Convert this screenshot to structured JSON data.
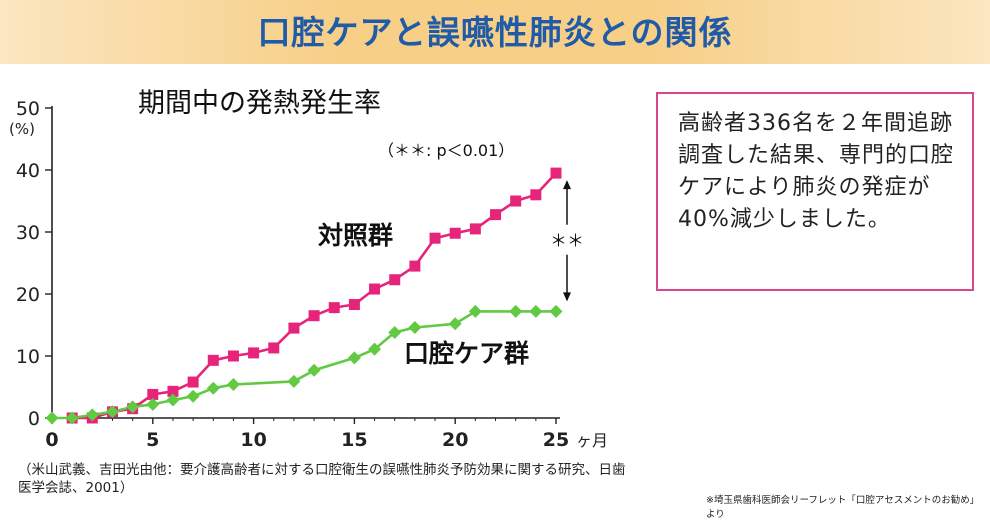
{
  "banner": {
    "title": "口腔ケアと誤嚥性肺炎との関係"
  },
  "info_box": {
    "text": "高齢者336名を２年間追跡調査した結果、専門的口腔ケアにより肺炎の発症が40%減少しました。"
  },
  "citation": "（米山武義、吉田光由他：要介護高齢者に対する口腔衛生の誤嚥性肺炎予防効果に関する研究、日歯医学会誌、2001）",
  "source_note": "※埼玉県歯科医師会リーフレット「口腔アセスメントのお勧め」より",
  "colors": {
    "control": "#e6247a",
    "oral_care": "#62c943",
    "axis": "#222222",
    "banner_text": "#1f5ba8",
    "box_border": "#d9478a"
  },
  "chart_data": {
    "type": "line",
    "title": "期間中の発熱発生率",
    "xlabel": "ヶ月",
    "ylabel": "(%)",
    "xlim": [
      0,
      25
    ],
    "ylim": [
      0,
      50
    ],
    "x_ticks": [
      0,
      5,
      10,
      15,
      20,
      25
    ],
    "y_ticks": [
      0,
      10,
      20,
      30,
      40,
      50
    ],
    "grid": false,
    "annotation": "（＊＊: p＜0.01）",
    "significance_label": "＊＊",
    "series": [
      {
        "name": "対照群",
        "color": "#e6247a",
        "marker": "square",
        "x": [
          1,
          2,
          3,
          4,
          5,
          6,
          7,
          8,
          9,
          10,
          11,
          12,
          13,
          14,
          15,
          16,
          17,
          18,
          19,
          20,
          21,
          22,
          23,
          24,
          25
        ],
        "y": [
          0,
          0,
          1,
          1.5,
          3.8,
          4.3,
          5.8,
          9.3,
          10,
          10.5,
          11.3,
          14.5,
          16.5,
          17.8,
          18.3,
          20.8,
          22.3,
          24.5,
          29,
          29.8,
          30.5,
          32.8,
          35,
          36,
          39.5
        ]
      },
      {
        "name": "口腔ケア群",
        "color": "#62c943",
        "marker": "diamond",
        "x": [
          0,
          1,
          2,
          3,
          4,
          5,
          6,
          7,
          8,
          9,
          12,
          13,
          15,
          16,
          17,
          18,
          20,
          21,
          23,
          24,
          25
        ],
        "y": [
          0,
          0,
          0.5,
          1,
          1.8,
          2.2,
          2.9,
          3.5,
          4.8,
          5.4,
          5.9,
          7.7,
          9.7,
          11.1,
          13.8,
          14.6,
          15.2,
          17.2,
          17.2,
          17.2,
          17.2
        ]
      }
    ]
  }
}
